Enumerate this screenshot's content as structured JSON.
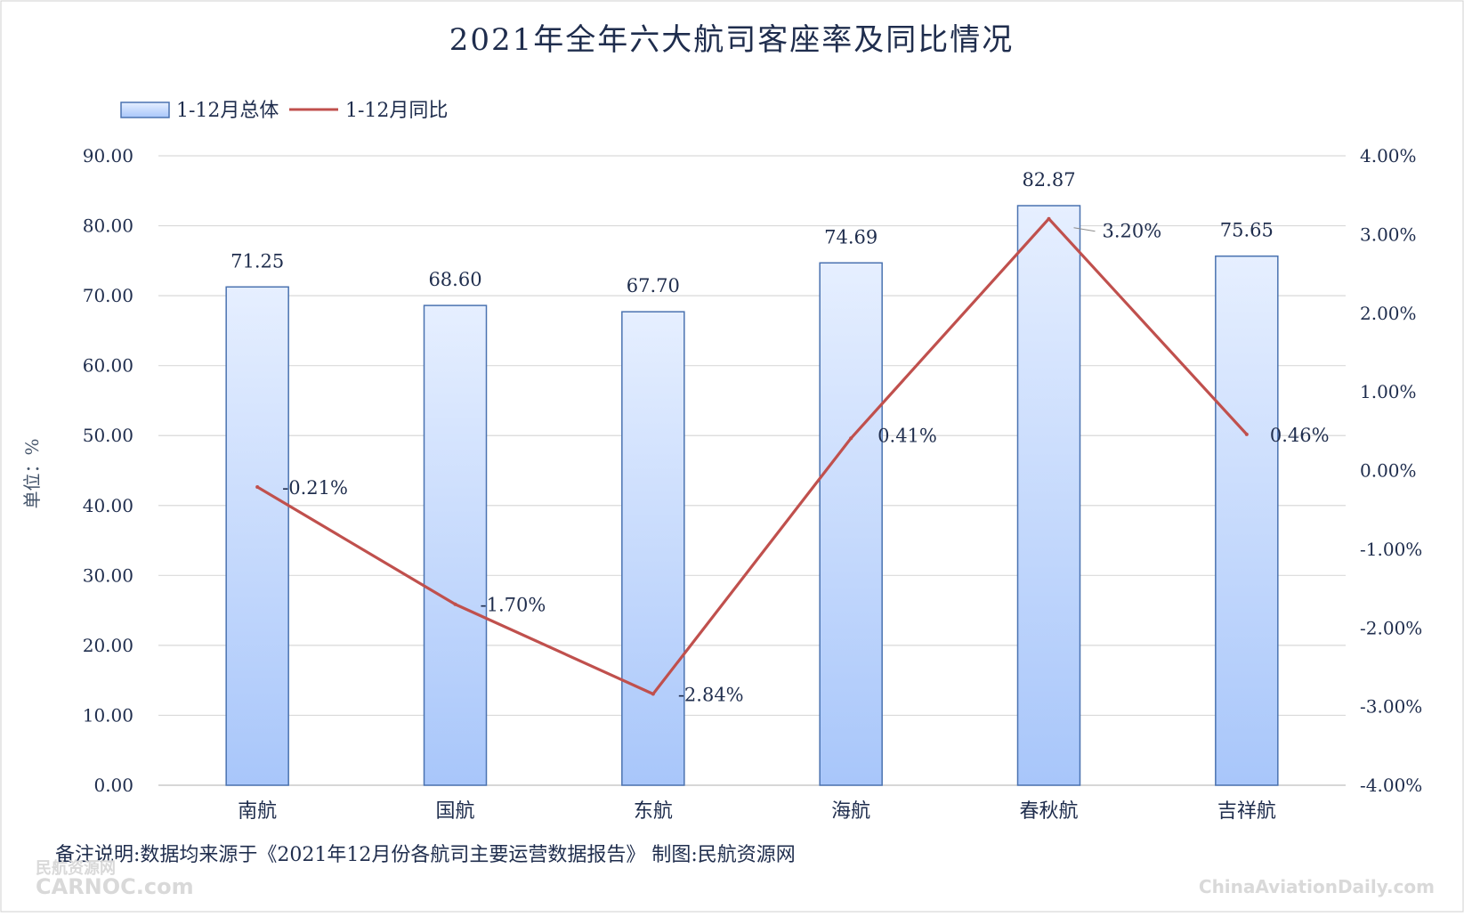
{
  "chart_data": {
    "type": "bar",
    "title": "2021年全年六大航司客座率及同比情况",
    "categories": [
      "南航",
      "国航",
      "东航",
      "海航",
      "春秋航",
      "吉祥航"
    ],
    "series": [
      {
        "name": "1-12月总体",
        "type": "bar",
        "axis": "left",
        "values": [
          71.25,
          68.6,
          67.7,
          74.69,
          82.87,
          75.65
        ],
        "labels": [
          "71.25",
          "68.60",
          "67.70",
          "74.69",
          "82.87",
          "75.65"
        ],
        "color": "#b9d1fb"
      },
      {
        "name": "1-12月同比",
        "type": "line",
        "axis": "right",
        "values": [
          -0.21,
          -1.7,
          -2.84,
          0.41,
          3.2,
          0.46
        ],
        "labels": [
          "-0.21%",
          "-1.70%",
          "-2.84%",
          "0.41%",
          "3.20%",
          "0.46%"
        ],
        "color": "#c0504d"
      }
    ],
    "y_left": {
      "label": "单位：%",
      "range": [
        0,
        90
      ],
      "ticks": [
        "0.00",
        "10.00",
        "20.00",
        "30.00",
        "40.00",
        "50.00",
        "60.00",
        "70.00",
        "80.00",
        "90.00"
      ]
    },
    "y_right": {
      "range": [
        -4,
        4
      ],
      "ticks": [
        "-4.00%",
        "-3.00%",
        "-2.00%",
        "-1.00%",
        "0.00%",
        "1.00%",
        "2.00%",
        "3.00%",
        "4.00%"
      ]
    },
    "grid": true,
    "legend_position": "top-left"
  },
  "note": "备注说明:数据均来源于《2021年12月份各航司主要运营数据报告》 制图:民航资源网",
  "watermarks": {
    "left_top": "民航资源网",
    "left_bottom": "CARNOC.com",
    "right": "ChinaAviationDaily.com"
  }
}
